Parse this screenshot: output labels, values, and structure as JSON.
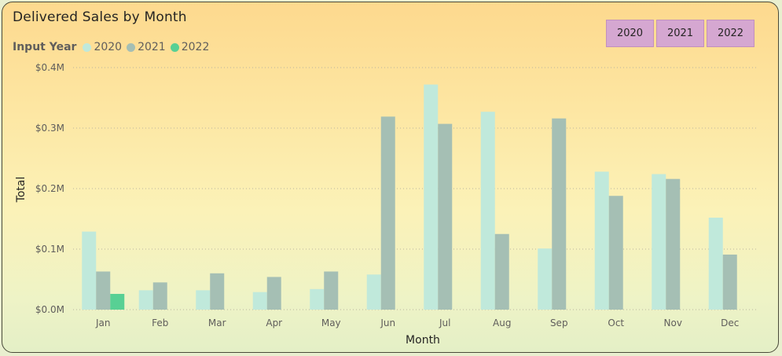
{
  "title": "Delivered Sales by Month",
  "legend": {
    "title": "Input Year",
    "items": [
      {
        "label": "2020",
        "color": "#c0e9db"
      },
      {
        "label": "2021",
        "color": "#a5bfb4"
      },
      {
        "label": "2022",
        "color": "#58d094"
      }
    ]
  },
  "buttons": [
    "2020",
    "2021",
    "2022"
  ],
  "chart_data": {
    "type": "bar",
    "title": "Delivered Sales by Month",
    "xlabel": "Month",
    "ylabel": "Total",
    "ylim": [
      0,
      0.4
    ],
    "yticks": [
      "$0.0M",
      "$0.1M",
      "$0.2M",
      "$0.3M",
      "$0.4M"
    ],
    "ytick_values": [
      0,
      0.1,
      0.2,
      0.3,
      0.4
    ],
    "grid": true,
    "legend_placement": "top-left",
    "categories": [
      "Jan",
      "Feb",
      "Mar",
      "Apr",
      "May",
      "Jun",
      "Jul",
      "Aug",
      "Sep",
      "Oct",
      "Nov",
      "Dec"
    ],
    "series": [
      {
        "name": "2020",
        "color": "#c0e9db",
        "values": [
          0.129,
          0.032,
          0.032,
          0.029,
          0.034,
          0.058,
          0.372,
          0.327,
          0.101,
          0.228,
          0.224,
          0.152
        ]
      },
      {
        "name": "2021",
        "color": "#a5bfb4",
        "values": [
          0.063,
          0.045,
          0.06,
          0.054,
          0.063,
          0.319,
          0.307,
          0.125,
          0.316,
          0.188,
          0.216,
          0.091
        ]
      },
      {
        "name": "2022",
        "color": "#58d094",
        "values": [
          0.026,
          null,
          null,
          null,
          null,
          null,
          null,
          null,
          null,
          null,
          null,
          null
        ]
      }
    ]
  }
}
